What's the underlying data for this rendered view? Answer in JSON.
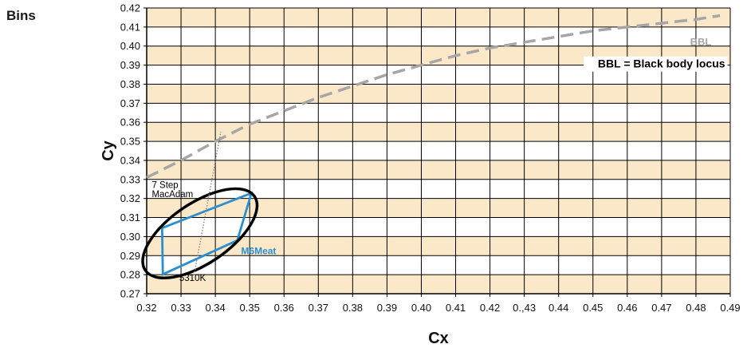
{
  "side_title": "Bins",
  "colors": {
    "band": "#fbe8c8",
    "grid": "#000000",
    "bbl": "#a6a6a6",
    "bin": "#2a8fd0",
    "ellipse": "#000000",
    "isotherm": "#8c8c8c"
  },
  "chart_data": {
    "type": "line",
    "title": "",
    "xlabel": "Cx",
    "ylabel": "Cy",
    "xlim": [
      0.32,
      0.49
    ],
    "ylim": [
      0.27,
      0.42
    ],
    "x_ticks": [
      "0.32",
      "0.33",
      "0.34",
      "0.35",
      "0.36",
      "0.37",
      "0.38",
      "0.39",
      "0.40",
      "0.41",
      "0.42",
      "0.,43",
      "0.44",
      "0.45",
      "0.46",
      "0.47",
      "0.48",
      "0.49"
    ],
    "y_ticks": [
      "0.27",
      "0.28",
      "0.29",
      "0.30",
      "0.31",
      "0.32",
      "0.33",
      "0.34",
      "0.35",
      "0.36",
      "0.37",
      "0.38",
      "0.39",
      "0.40",
      "0.41",
      "0.42"
    ],
    "grid": true,
    "series": [
      {
        "name": "BBL",
        "style": "dashed",
        "points": [
          [
            0.32,
            0.331
          ],
          [
            0.33,
            0.34
          ],
          [
            0.34,
            0.35
          ],
          [
            0.35,
            0.359
          ],
          [
            0.36,
            0.366
          ],
          [
            0.37,
            0.373
          ],
          [
            0.38,
            0.379
          ],
          [
            0.39,
            0.385
          ],
          [
            0.4,
            0.39
          ],
          [
            0.41,
            0.395
          ],
          [
            0.42,
            0.399
          ],
          [
            0.43,
            0.402
          ],
          [
            0.44,
            0.405
          ],
          [
            0.45,
            0.408
          ],
          [
            0.46,
            0.41
          ],
          [
            0.47,
            0.412
          ],
          [
            0.48,
            0.414
          ],
          [
            0.487,
            0.416
          ]
        ]
      },
      {
        "name": "M6Meat",
        "style": "polygon",
        "points": [
          [
            0.3245,
            0.3045
          ],
          [
            0.3505,
            0.3228
          ],
          [
            0.3464,
            0.298
          ],
          [
            0.3247,
            0.2802
          ]
        ]
      },
      {
        "name": "7 Step MacAdam",
        "style": "ellipse",
        "center": [
          0.3355,
          0.3017
        ],
        "semi_axes": [
          0.0192,
          0.0088
        ],
        "rotation_deg": 34
      },
      {
        "name": "5310K",
        "style": "dotted",
        "points": [
          [
            0.3338,
            0.2798
          ],
          [
            0.3416,
            0.355
          ]
        ]
      }
    ],
    "annotations": [
      {
        "text": "BBL",
        "at": [
          0.4845,
          0.4004
        ]
      },
      {
        "text": "BBL = Black body locus",
        "at": [
          0.4885,
          0.3887
        ]
      },
      {
        "text": "7 Step",
        "at": [
          0.3215,
          0.3255
        ]
      },
      {
        "text": "MacAdam",
        "at": [
          0.3215,
          0.3208
        ]
      },
      {
        "text": "M6Meat",
        "at": [
          0.3475,
          0.2907
        ]
      },
      {
        "text": "5310K",
        "at": [
          0.3295,
          0.2766
        ]
      }
    ]
  }
}
